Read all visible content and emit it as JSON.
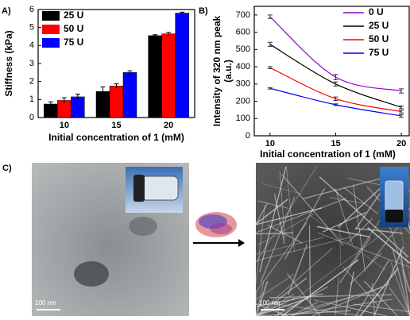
{
  "chart_data": [
    {
      "type": "bar",
      "panel_label": "A)",
      "y_label": "Stiffness (kPa)",
      "x_label": "Initial concentration of 1 (mM)",
      "categories": [
        "10",
        "15",
        "20"
      ],
      "series": [
        {
          "name": "25 U",
          "color": "#000000",
          "values": [
            0.75,
            1.45,
            4.55
          ],
          "errors": [
            0.12,
            0.25,
            0.05
          ]
        },
        {
          "name": "50 U",
          "color": "#ff0000",
          "values": [
            0.95,
            1.75,
            4.65
          ],
          "errors": [
            0.15,
            0.12,
            0.08
          ]
        },
        {
          "name": "75 U",
          "color": "#0000ff",
          "values": [
            1.15,
            2.5,
            5.8
          ],
          "errors": [
            0.15,
            0.1,
            0.05
          ]
        }
      ],
      "ylim": [
        0,
        6
      ],
      "yticks": [
        0,
        1,
        2,
        3,
        4,
        5,
        6
      ],
      "legend": "top-left"
    },
    {
      "type": "line",
      "panel_label": "B)",
      "y_label": [
        "Intensity of 320 nm peak",
        "(a.u.)"
      ],
      "x_label": "Initial concentration of 1 (mM)",
      "x": [
        10,
        15,
        20
      ],
      "series": [
        {
          "name": "0 U",
          "color": "#9900cc",
          "values": [
            690,
            340,
            260
          ],
          "errors": [
            10,
            15,
            12
          ]
        },
        {
          "name": "25 U",
          "color": "#000000",
          "values": [
            530,
            300,
            165
          ],
          "errors": [
            12,
            12,
            8
          ]
        },
        {
          "name": "50 U",
          "color": "#ff0000",
          "values": [
            395,
            215,
            140
          ],
          "errors": [
            6,
            10,
            8
          ]
        },
        {
          "name": "75 U",
          "color": "#0000ff",
          "values": [
            275,
            180,
            115
          ],
          "errors": [
            4,
            5,
            8
          ]
        }
      ],
      "xlim": [
        8.8,
        20.6
      ],
      "xticks": [
        10,
        15,
        20
      ],
      "ylim": [
        0,
        750
      ],
      "yticks": [
        0,
        100,
        200,
        300,
        400,
        500,
        600,
        700
      ],
      "legend": "top-right"
    }
  ],
  "panel_c": {
    "label": "C)",
    "scale_bars": [
      "100 nm",
      "100 nm"
    ]
  }
}
